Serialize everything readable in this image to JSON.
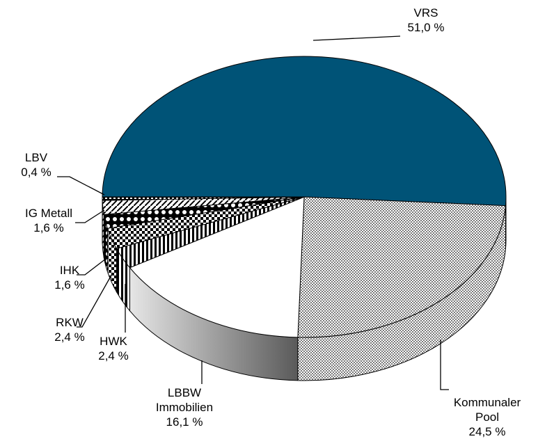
{
  "chart_data": {
    "type": "pie3d",
    "categories": [
      "VRS",
      "Kommunaler Pool",
      "LBBW Immobilien",
      "HWK",
      "RKW",
      "IHK",
      "IG Metall",
      "LBV"
    ],
    "values": [
      51.0,
      24.5,
      16.1,
      2.4,
      2.4,
      1.6,
      1.6,
      0.4
    ],
    "value_labels": [
      "51,0 %",
      "24,5 %",
      "16,1 %",
      "2,4 %",
      "2,4 %",
      "1,6 %",
      "1,6 %",
      "0,4 %"
    ],
    "colors": [
      "#005377",
      "#7a7a7a",
      "#ffffff",
      "#000000",
      "#000000",
      "#000000",
      "#000000",
      "#000000"
    ],
    "patterns": [
      "solid",
      "checker",
      "solid",
      "vstripes",
      "dots",
      "circles",
      "diagonal",
      "dashes"
    ]
  }
}
